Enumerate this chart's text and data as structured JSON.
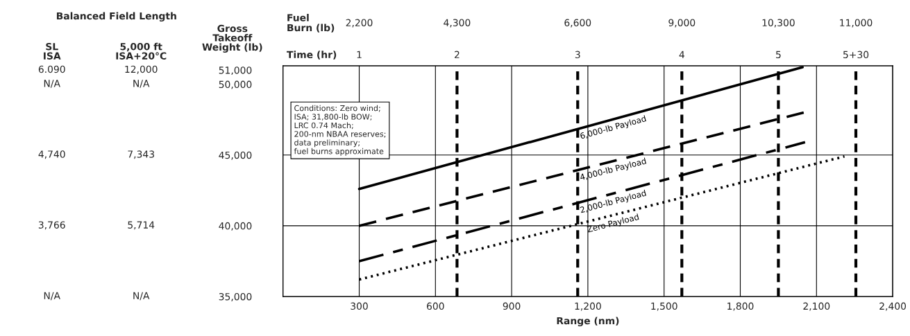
{
  "chart_data": {
    "type": "line",
    "xlabel": "Range (nm)",
    "ylabel": "Gross\nTakeoff\nWeight (lb)",
    "annotations": [
      "Balanced Field Length",
      "SL\nISA",
      "5,000 ft\nISA+20°C",
      "Fuel\nBurn (lb)",
      "Time (hr)",
      "Conditions: Zero wind;\nISA; 31,800-lb BOW;\nLRC 0.74 Mach;\n200-nm NBAA reserves;\ndata preliminary;\nfuel burns approximate",
      "6.090",
      "N/A",
      "4,740",
      "3,766",
      "N/A",
      "12,000",
      "N/A",
      "7,343",
      "5,714",
      "N/A",
      "2,200",
      "4,300",
      "6,600",
      "9,000",
      "10,300",
      "11,000",
      "1",
      "2",
      "3",
      "4",
      "5",
      "5+30"
    ],
    "series": [
      {
        "name": "6,000-lb Payload",
        "color": "#000000",
        "line_style": "solid",
        "x": [
          300,
          2045
        ],
        "values": [
          42600,
          51200
        ]
      },
      {
        "name": "4,000-lb Payload",
        "color": "#000000",
        "line_style": "dashed",
        "x": [
          300,
          2050
        ],
        "values": [
          40000,
          48000
        ]
      },
      {
        "name": "2,000-lb Payload",
        "color": "#000000",
        "line_style": "dashdot",
        "x": [
          300,
          2055
        ],
        "values": [
          37500,
          45900
        ]
      },
      {
        "name": "Zero Payload",
        "color": "#000000",
        "line_style": "dotted",
        "x": [
          300,
          2210
        ],
        "values": [
          36200,
          44900
        ]
      }
    ],
    "xlim": [
      0,
      2400
    ],
    "xticks": [
      300,
      600,
      900,
      {
        "value": 1200,
        "label": "1,200"
      },
      {
        "value": 1500,
        "label": "1,500"
      },
      {
        "value": 1800,
        "label": "1,800"
      },
      {
        "value": 2100,
        "label": "2,100"
      },
      {
        "value": 2400,
        "label": "2,400"
      }
    ],
    "ylim": [
      35000,
      51300
    ],
    "yticks": [
      {
        "value": 51000,
        "label": "51,000"
      },
      {
        "value": 50000,
        "label": "50,000"
      },
      {
        "value": 45000,
        "label": "45,000"
      },
      {
        "value": 40000,
        "label": "40,000"
      },
      {
        "value": 35000,
        "label": "35,000"
      }
    ],
    "ref_lines": [
      {
        "axis": "x",
        "value": 685,
        "line_style": "dashed",
        "color": "#000000"
      },
      {
        "axis": "x",
        "value": 1160,
        "line_style": "dashed",
        "color": "#000000"
      },
      {
        "axis": "x",
        "value": 1570,
        "line_style": "dashed",
        "color": "#000000"
      },
      {
        "axis": "x",
        "value": 1950,
        "line_style": "dashed",
        "color": "#000000"
      },
      {
        "axis": "x",
        "value": 2255,
        "line_style": "dashed",
        "color": "#000000"
      },
      {
        "axis": "y",
        "value": 40000,
        "line_style": "solid",
        "color": "#000000"
      },
      {
        "axis": "y",
        "value": 45000,
        "line_style": "solid",
        "color": "#000000"
      }
    ],
    "grid": "x",
    "legend": false
  }
}
